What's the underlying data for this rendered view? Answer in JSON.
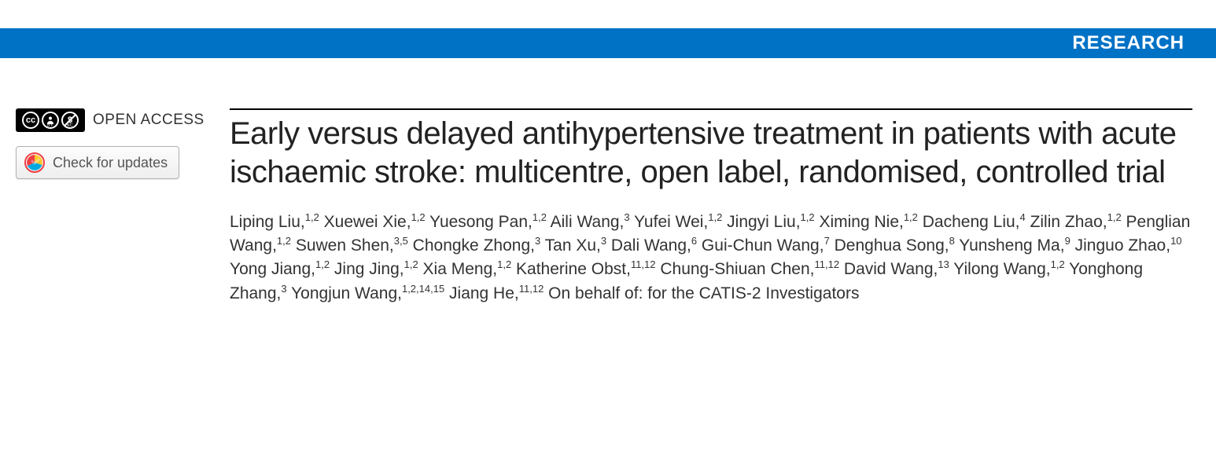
{
  "colors": {
    "banner_bg": "#0072c6",
    "banner_text": "#ffffff",
    "title_color": "#222222",
    "body_text": "#333333",
    "button_border": "#b0b0b0",
    "button_text": "#555555",
    "rule_color": "#000000"
  },
  "banner": {
    "label": "RESEARCH"
  },
  "sidebar": {
    "open_access_label": "OPEN ACCESS",
    "cc_icons": [
      "CC",
      "BY",
      "NC"
    ],
    "updates_label": "Check for updates"
  },
  "article": {
    "title": "Early versus delayed antihypertensive treatment in patients with acute ischaemic stroke: multicentre, open label, randomised, controlled trial",
    "authors": [
      {
        "name": "Liping Liu",
        "aff": "1,2"
      },
      {
        "name": "Xuewei Xie",
        "aff": "1,2"
      },
      {
        "name": "Yuesong Pan",
        "aff": "1,2"
      },
      {
        "name": "Aili Wang",
        "aff": "3"
      },
      {
        "name": "Yufei Wei",
        "aff": "1,2"
      },
      {
        "name": "Jingyi Liu",
        "aff": "1,2"
      },
      {
        "name": "Ximing Nie",
        "aff": "1,2"
      },
      {
        "name": "Dacheng Liu",
        "aff": "4"
      },
      {
        "name": "Zilin Zhao",
        "aff": "1,2"
      },
      {
        "name": "Penglian Wang",
        "aff": "1,2"
      },
      {
        "name": "Suwen Shen",
        "aff": "3,5"
      },
      {
        "name": "Chongke Zhong",
        "aff": "3"
      },
      {
        "name": "Tan Xu",
        "aff": "3"
      },
      {
        "name": "Dali Wang",
        "aff": "6"
      },
      {
        "name": "Gui-Chun Wang",
        "aff": "7"
      },
      {
        "name": "Denghua Song",
        "aff": "8"
      },
      {
        "name": "Yunsheng Ma",
        "aff": "9"
      },
      {
        "name": "Jinguo Zhao",
        "aff": "10"
      },
      {
        "name": "Yong Jiang",
        "aff": "1,2"
      },
      {
        "name": "Jing Jing",
        "aff": "1,2"
      },
      {
        "name": "Xia Meng",
        "aff": "1,2"
      },
      {
        "name": "Katherine Obst",
        "aff": "11,12"
      },
      {
        "name": "Chung-Shiuan Chen",
        "aff": "11,12"
      },
      {
        "name": "David Wang",
        "aff": "13"
      },
      {
        "name": "Yilong Wang",
        "aff": "1,2"
      },
      {
        "name": "Yonghong Zhang",
        "aff": "3"
      },
      {
        "name": "Yongjun Wang",
        "aff": "1,2,14,15"
      },
      {
        "name": "Jiang He",
        "aff": "11,12"
      }
    ],
    "group_statement": "On behalf of: for the CATIS-2 Investigators"
  }
}
